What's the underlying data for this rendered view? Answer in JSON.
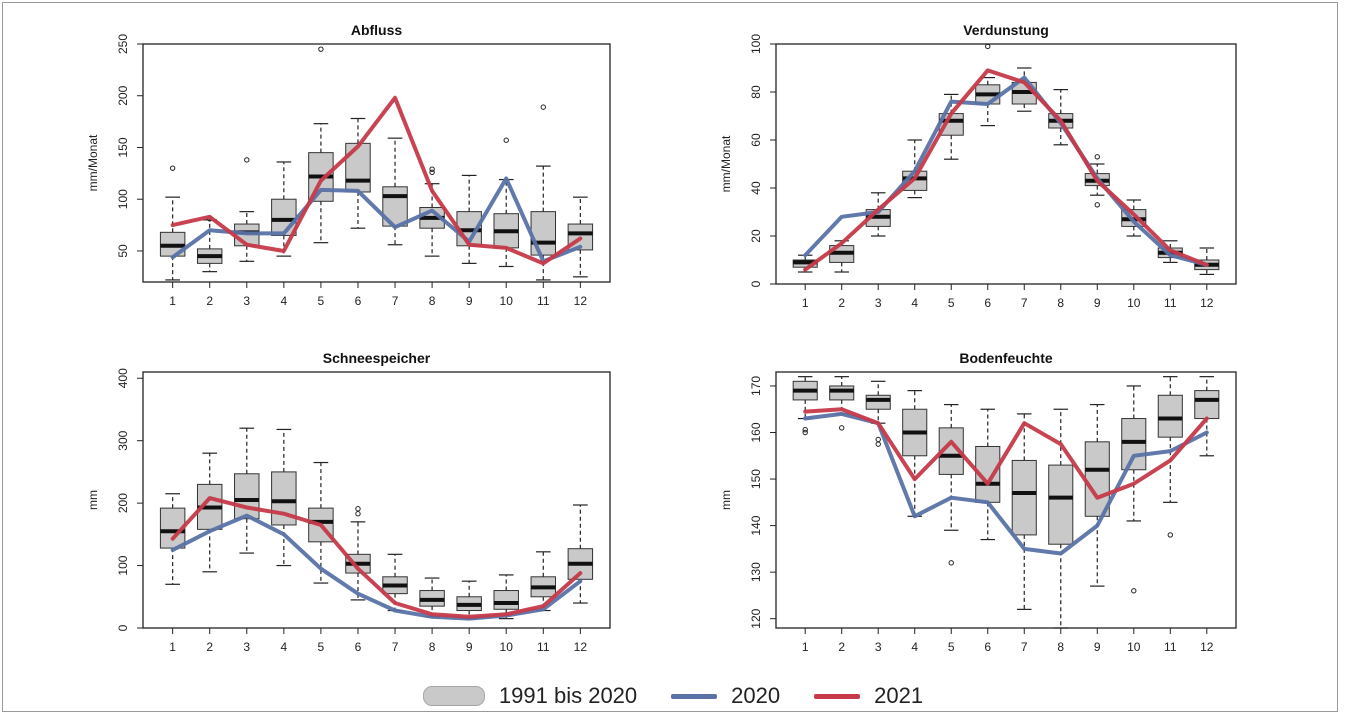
{
  "legend": {
    "items": [
      {
        "label": "1991 bis 2020",
        "kind": "box",
        "color": "#c9c9c9"
      },
      {
        "label": "2020",
        "kind": "line",
        "color": "#5a72a6"
      },
      {
        "label": "2021",
        "kind": "line",
        "color": "#c63a4a"
      }
    ]
  },
  "chart_data": [
    {
      "type": "boxplot",
      "title": "Abfluss",
      "ylabel": "mm/Monat",
      "xlabel": "",
      "ylim": [
        20,
        250
      ],
      "yticks": [
        50,
        100,
        150,
        200,
        250
      ],
      "categories": [
        "1",
        "2",
        "3",
        "4",
        "5",
        "6",
        "7",
        "8",
        "9",
        "10",
        "11",
        "12"
      ],
      "boxes": [
        {
          "min": 22,
          "q1": 45,
          "median": 55,
          "q3": 68,
          "max": 102,
          "outliers": [
            130
          ]
        },
        {
          "min": 30,
          "q1": 38,
          "median": 45,
          "q3": 52,
          "max": 80,
          "outliers": [
            81
          ]
        },
        {
          "min": 40,
          "q1": 55,
          "median": 68,
          "q3": 76,
          "max": 88,
          "outliers": [
            138
          ]
        },
        {
          "min": 45,
          "q1": 65,
          "median": 80,
          "q3": 100,
          "max": 136,
          "outliers": []
        },
        {
          "min": 58,
          "q1": 98,
          "median": 122,
          "q3": 145,
          "max": 173,
          "outliers": [
            245
          ]
        },
        {
          "min": 72,
          "q1": 107,
          "median": 118,
          "q3": 154,
          "max": 178,
          "outliers": []
        },
        {
          "min": 56,
          "q1": 74,
          "median": 103,
          "q3": 112,
          "max": 159,
          "outliers": []
        },
        {
          "min": 45,
          "q1": 72,
          "median": 82,
          "q3": 92,
          "max": 115,
          "outliers": [
            126,
            129
          ]
        },
        {
          "min": 38,
          "q1": 55,
          "median": 70,
          "q3": 88,
          "max": 123,
          "outliers": []
        },
        {
          "min": 35,
          "q1": 53,
          "median": 69,
          "q3": 86,
          "max": 119,
          "outliers": [
            157
          ]
        },
        {
          "min": 22,
          "q1": 46,
          "median": 58,
          "q3": 88,
          "max": 132,
          "outliers": [
            189
          ]
        },
        {
          "min": 25,
          "q1": 51,
          "median": 67,
          "q3": 76,
          "max": 102,
          "outliers": []
        }
      ],
      "series": [
        {
          "name": "2020",
          "values": [
            44,
            70,
            67,
            67,
            109,
            108,
            73,
            89,
            59,
            120,
            40,
            54
          ]
        },
        {
          "name": "2021",
          "values": [
            75,
            83,
            56,
            50,
            118,
            151,
            198,
            108,
            56,
            53,
            38,
            62
          ]
        }
      ]
    },
    {
      "type": "boxplot",
      "title": "Verdunstung",
      "ylabel": "mm/Monat",
      "xlabel": "",
      "ylim": [
        0,
        100
      ],
      "yticks": [
        0,
        20,
        40,
        60,
        80,
        100
      ],
      "categories": [
        "1",
        "2",
        "3",
        "4",
        "5",
        "6",
        "7",
        "8",
        "9",
        "10",
        "11",
        "12"
      ],
      "boxes": [
        {
          "min": 5,
          "q1": 7,
          "median": 9,
          "q3": 10,
          "max": 12,
          "outliers": []
        },
        {
          "min": 5,
          "q1": 9,
          "median": 13,
          "q3": 16,
          "max": 18,
          "outliers": []
        },
        {
          "min": 20,
          "q1": 24,
          "median": 28,
          "q3": 31,
          "max": 38,
          "outliers": []
        },
        {
          "min": 36,
          "q1": 39,
          "median": 44,
          "q3": 47,
          "max": 60,
          "outliers": []
        },
        {
          "min": 52,
          "q1": 62,
          "median": 68,
          "q3": 71,
          "max": 79,
          "outliers": []
        },
        {
          "min": 66,
          "q1": 75,
          "median": 79,
          "q3": 83,
          "max": 86,
          "outliers": [
            99
          ]
        },
        {
          "min": 72,
          "q1": 75,
          "median": 80,
          "q3": 84,
          "max": 90,
          "outliers": []
        },
        {
          "min": 58,
          "q1": 65,
          "median": 68,
          "q3": 71,
          "max": 81,
          "outliers": []
        },
        {
          "min": 37,
          "q1": 41,
          "median": 43,
          "q3": 46,
          "max": 50,
          "outliers": [
            53,
            33
          ]
        },
        {
          "min": 20,
          "q1": 24,
          "median": 27,
          "q3": 31,
          "max": 35,
          "outliers": []
        },
        {
          "min": 9,
          "q1": 11,
          "median": 13,
          "q3": 15,
          "max": 18,
          "outliers": []
        },
        {
          "min": 4,
          "q1": 6,
          "median": 8,
          "q3": 10,
          "max": 15,
          "outliers": []
        }
      ],
      "series": [
        {
          "name": "2020",
          "values": [
            12,
            28,
            30,
            47,
            76,
            75,
            86,
            67,
            44,
            26,
            12,
            8
          ]
        },
        {
          "name": "2021",
          "values": [
            6,
            17,
            31,
            44,
            71,
            89,
            84,
            68,
            43,
            29,
            14,
            8
          ]
        }
      ]
    },
    {
      "type": "boxplot",
      "title": "Schneespeicher",
      "ylabel": "mm",
      "xlabel": "",
      "ylim": [
        0,
        410
      ],
      "yticks": [
        0,
        100,
        200,
        300,
        400
      ],
      "categories": [
        "1",
        "2",
        "3",
        "4",
        "5",
        "6",
        "7",
        "8",
        "9",
        "10",
        "11",
        "12"
      ],
      "boxes": [
        {
          "min": 70,
          "q1": 128,
          "median": 155,
          "q3": 192,
          "max": 215,
          "outliers": []
        },
        {
          "min": 90,
          "q1": 158,
          "median": 193,
          "q3": 230,
          "max": 280,
          "outliers": []
        },
        {
          "min": 120,
          "q1": 175,
          "median": 205,
          "q3": 247,
          "max": 320,
          "outliers": []
        },
        {
          "min": 100,
          "q1": 165,
          "median": 203,
          "q3": 250,
          "max": 318,
          "outliers": []
        },
        {
          "min": 72,
          "q1": 138,
          "median": 170,
          "q3": 192,
          "max": 265,
          "outliers": []
        },
        {
          "min": 45,
          "q1": 88,
          "median": 103,
          "q3": 118,
          "max": 170,
          "outliers": [
            183,
            191
          ]
        },
        {
          "min": 28,
          "q1": 55,
          "median": 68,
          "q3": 82,
          "max": 118,
          "outliers": []
        },
        {
          "min": 18,
          "q1": 35,
          "median": 45,
          "q3": 60,
          "max": 80,
          "outliers": []
        },
        {
          "min": 15,
          "q1": 28,
          "median": 37,
          "q3": 50,
          "max": 75,
          "outliers": []
        },
        {
          "min": 15,
          "q1": 30,
          "median": 40,
          "q3": 60,
          "max": 85,
          "outliers": []
        },
        {
          "min": 28,
          "q1": 50,
          "median": 65,
          "q3": 82,
          "max": 122,
          "outliers": []
        },
        {
          "min": 40,
          "q1": 78,
          "median": 103,
          "q3": 127,
          "max": 197,
          "outliers": []
        }
      ],
      "series": [
        {
          "name": "2020",
          "values": [
            125,
            155,
            180,
            150,
            95,
            55,
            28,
            18,
            15,
            20,
            30,
            75
          ]
        },
        {
          "name": "2021",
          "values": [
            143,
            208,
            193,
            183,
            165,
            95,
            40,
            22,
            18,
            22,
            35,
            88
          ]
        }
      ]
    },
    {
      "type": "boxplot",
      "title": "Bodenfeuchte",
      "ylabel": "mm",
      "xlabel": "",
      "ylim": [
        118,
        173
      ],
      "yticks": [
        120,
        130,
        140,
        150,
        160,
        170
      ],
      "categories": [
        "1",
        "2",
        "3",
        "4",
        "5",
        "6",
        "7",
        "8",
        "9",
        "10",
        "11",
        "12"
      ],
      "boxes": [
        {
          "min": 163,
          "q1": 167,
          "median": 169,
          "q3": 171,
          "max": 172,
          "outliers": [
            160,
            160.6
          ]
        },
        {
          "min": 164,
          "q1": 167,
          "median": 169,
          "q3": 170,
          "max": 172,
          "outliers": [
            161
          ]
        },
        {
          "min": 162,
          "q1": 165,
          "median": 167,
          "q3": 168,
          "max": 171,
          "outliers": [
            157.5,
            158.5
          ]
        },
        {
          "min": 142,
          "q1": 155,
          "median": 160,
          "q3": 165,
          "max": 169,
          "outliers": []
        },
        {
          "min": 139,
          "q1": 151,
          "median": 155,
          "q3": 161,
          "max": 166,
          "outliers": [
            132
          ]
        },
        {
          "min": 137,
          "q1": 145,
          "median": 149,
          "q3": 157,
          "max": 165,
          "outliers": []
        },
        {
          "min": 122,
          "q1": 138,
          "median": 147,
          "q3": 154,
          "max": 164,
          "outliers": []
        },
        {
          "min": 118,
          "q1": 136,
          "median": 146,
          "q3": 153,
          "max": 165,
          "outliers": []
        },
        {
          "min": 127,
          "q1": 142,
          "median": 152,
          "q3": 158,
          "max": 166,
          "outliers": []
        },
        {
          "min": 141,
          "q1": 152,
          "median": 158,
          "q3": 163,
          "max": 170,
          "outliers": [
            126
          ]
        },
        {
          "min": 145,
          "q1": 159,
          "median": 163,
          "q3": 168,
          "max": 172,
          "outliers": [
            138
          ]
        },
        {
          "min": 155,
          "q1": 163,
          "median": 167,
          "q3": 169,
          "max": 172,
          "outliers": []
        }
      ],
      "series": [
        {
          "name": "2020",
          "values": [
            163,
            164,
            162,
            142,
            146,
            145,
            135,
            134,
            140,
            155,
            156,
            160
          ]
        },
        {
          "name": "2021",
          "values": [
            164.5,
            165,
            162,
            150,
            158,
            149,
            162,
            157.5,
            146,
            149,
            154,
            163
          ]
        }
      ]
    }
  ]
}
